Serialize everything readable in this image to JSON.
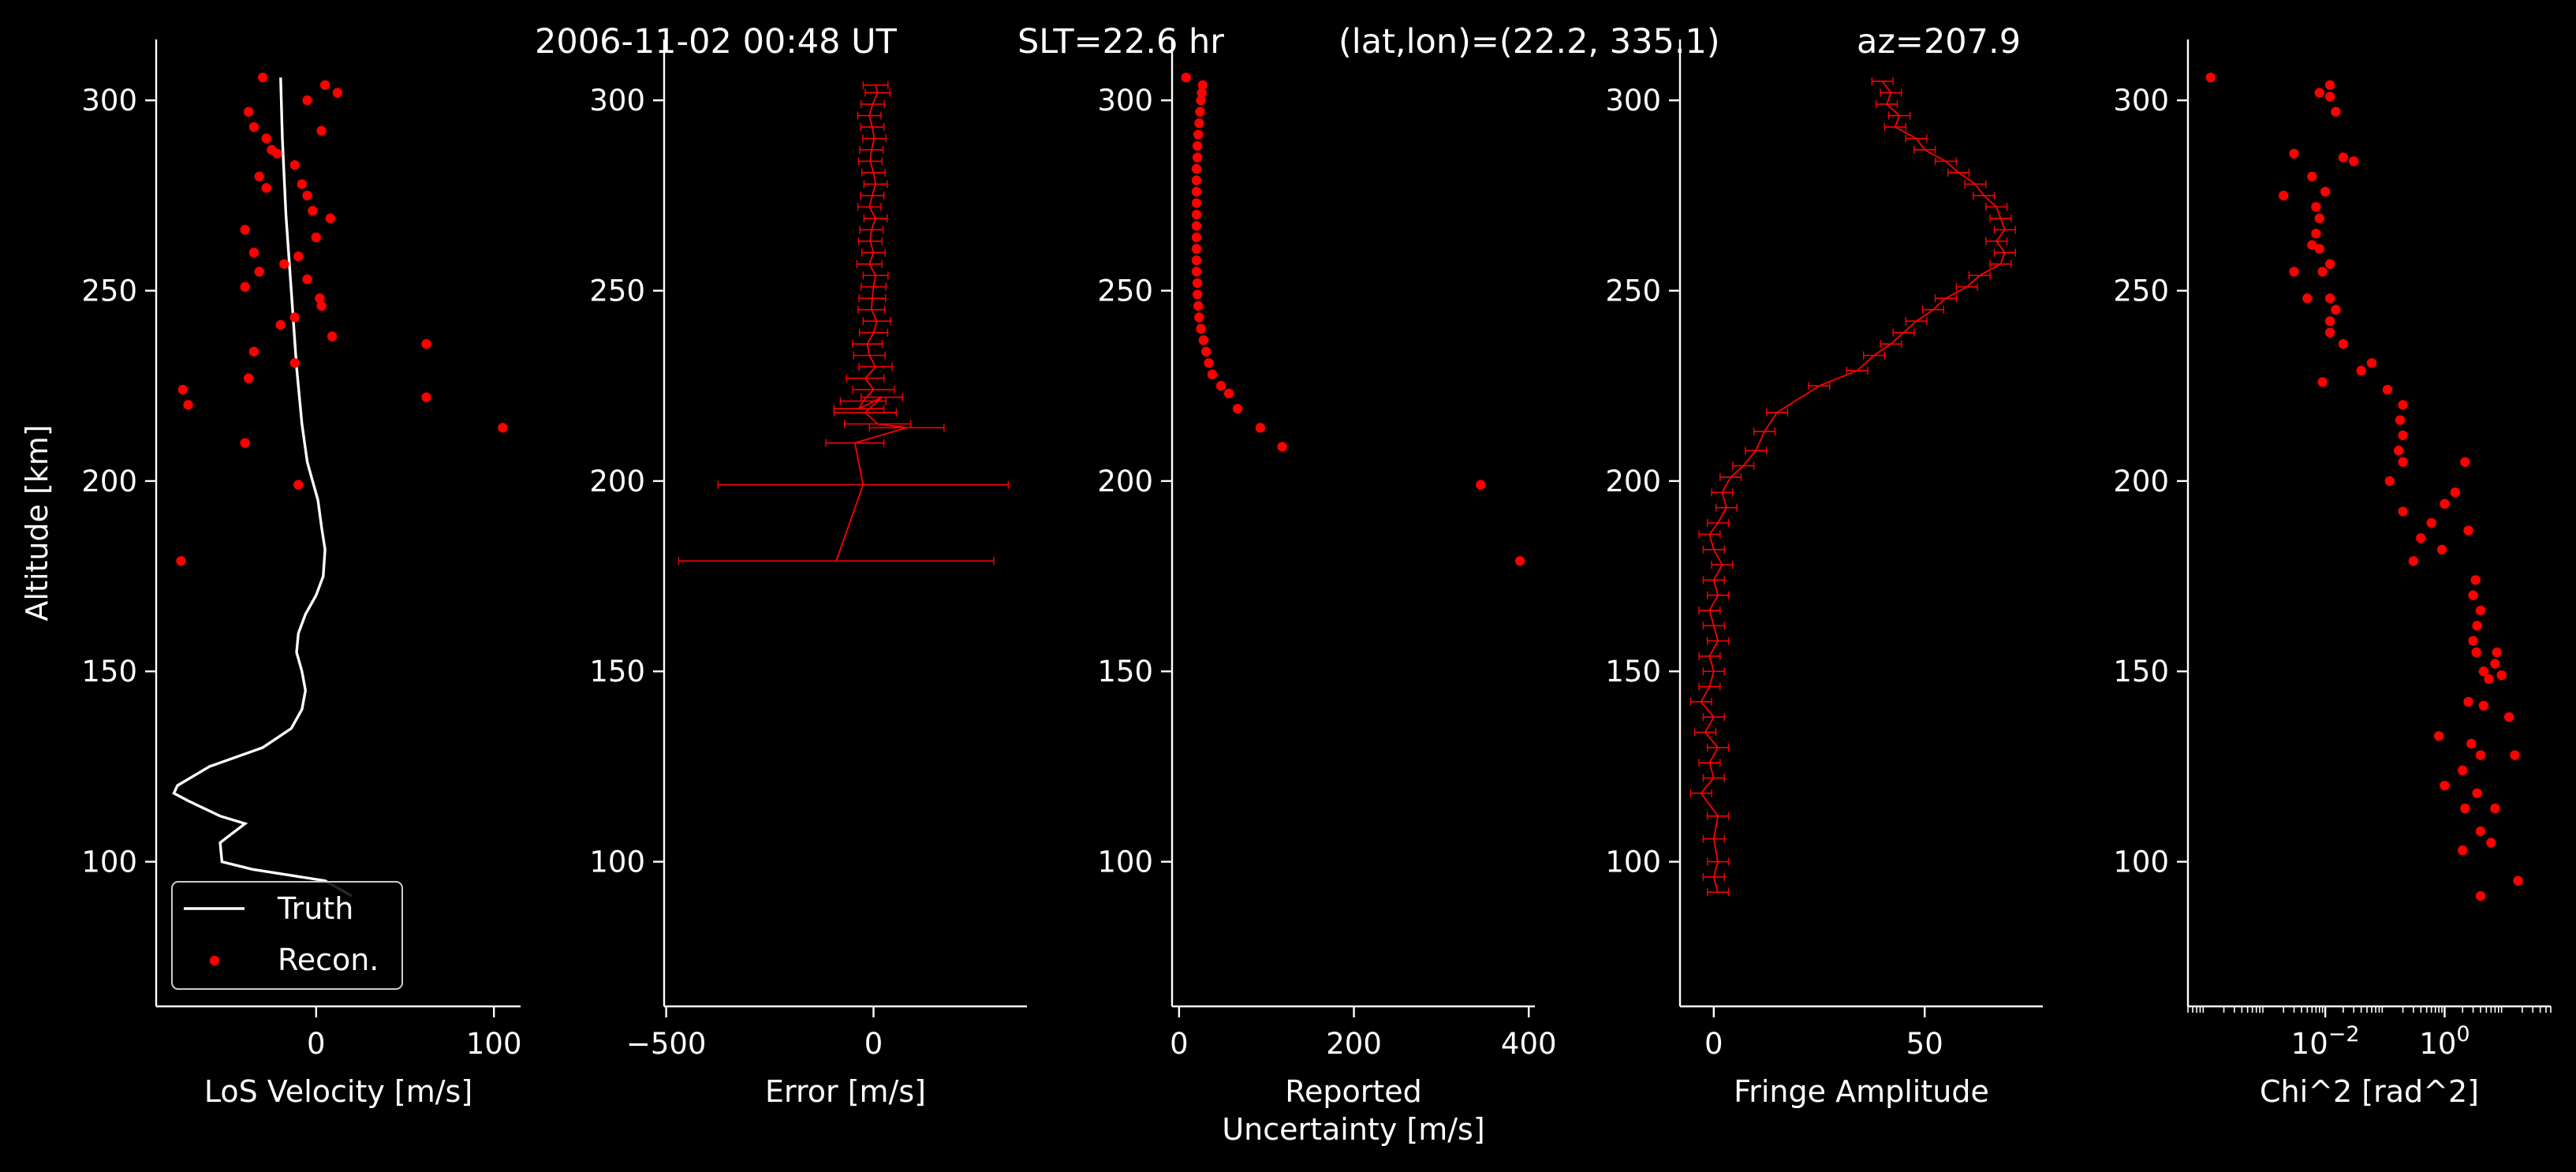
{
  "title_parts": [
    "2006-11-02 00:48 UT",
    "SLT=22.6 hr",
    "(lat,lon)=(22.2, 335.1)",
    "az=207.9"
  ],
  "colors": {
    "background": "#000000",
    "axes": "#ffffff",
    "recon": "#ff0000",
    "truth": "#ffffff"
  },
  "chart_data": [
    {
      "type": "scatter",
      "xlabel": [
        "LoS Velocity [m/s]"
      ],
      "ylabel": "Altitude [km]",
      "xlim": [
        -90,
        115
      ],
      "ylim": [
        62,
        316
      ],
      "xticks": [
        {
          "v": 0,
          "label": "0"
        },
        {
          "v": 100,
          "label": "100"
        }
      ],
      "yticks": [
        {
          "v": 100,
          "label": "100"
        },
        {
          "v": 150,
          "label": "150"
        },
        {
          "v": 200,
          "label": "200"
        },
        {
          "v": 250,
          "label": "250"
        },
        {
          "v": 300,
          "label": "300"
        }
      ],
      "legend": {
        "position": "lower-left",
        "entries": [
          "Truth",
          "Recon."
        ]
      },
      "series": [
        {
          "name": "Truth",
          "kind": "line",
          "x": [
            -20,
            -19,
            -17,
            -14,
            -11,
            -8,
            -5,
            -2,
            1,
            3,
            5,
            4,
            0,
            -6,
            -10,
            -11,
            -8,
            -6,
            -8,
            -14,
            -30,
            -60,
            -78,
            -80,
            -72,
            -54,
            -40,
            -54,
            -53,
            -36,
            5,
            20
          ],
          "y": [
            306,
            290,
            270,
            250,
            230,
            215,
            205,
            200,
            195,
            188,
            182,
            175,
            170,
            165,
            160,
            155,
            150,
            145,
            140,
            135,
            130,
            125,
            120,
            118,
            116,
            112,
            110,
            105,
            100,
            98,
            95,
            91
          ]
        },
        {
          "name": "Recon.",
          "kind": "points",
          "x": [
            -30,
            5,
            12,
            -5,
            -38,
            -35,
            3,
            -28,
            -22,
            -25,
            -12,
            -32,
            -28,
            -8,
            -5,
            -2,
            8,
            -40,
            0,
            -35,
            -10,
            -18,
            -32,
            -5,
            2,
            -40,
            3,
            -12,
            9,
            -35,
            -20,
            -12,
            -38,
            -75,
            -72,
            62,
            62,
            105,
            -40,
            -10,
            -76
          ],
          "y": [
            306,
            304,
            302,
            300,
            297,
            293,
            292,
            290,
            286,
            287,
            283,
            280,
            277,
            278,
            275,
            271,
            269,
            266,
            264,
            260,
            259,
            257,
            255,
            253,
            248,
            251,
            246,
            243,
            238,
            234,
            241,
            231,
            227,
            224,
            220,
            236,
            222,
            214,
            210,
            199,
            179
          ]
        }
      ]
    },
    {
      "type": "scatter",
      "xlabel": [
        "Error [m/s]"
      ],
      "xlim": [
        -505,
        370
      ],
      "ylim": [
        62,
        316
      ],
      "xticks": [
        {
          "v": -500,
          "label": "−500"
        },
        {
          "v": 0,
          "label": "0"
        }
      ],
      "yticks": [
        {
          "v": 100,
          "label": "100"
        },
        {
          "v": 150,
          "label": "150"
        },
        {
          "v": 200,
          "label": "200"
        },
        {
          "v": 250,
          "label": "250"
        },
        {
          "v": 300,
          "label": "300"
        }
      ],
      "series": [
        {
          "name": "",
          "kind": "errorbar",
          "x": [
            5,
            10,
            -2,
            -10,
            -3,
            2,
            -5,
            -8,
            0,
            5,
            -3,
            -10,
            5,
            -5,
            -8,
            0,
            -10,
            5,
            0,
            -3,
            -5,
            8,
            0,
            -15,
            -10,
            5,
            -20,
            0,
            -25,
            -35,
            20,
            -20,
            10,
            80,
            -45,
            -25,
            -90
          ],
          "y": [
            304,
            302,
            299,
            296,
            293,
            290,
            287,
            284,
            281,
            278,
            275,
            272,
            269,
            266,
            263,
            260,
            257,
            254,
            251,
            248,
            245,
            242,
            239,
            236,
            233,
            230,
            227,
            224,
            221,
            219,
            222,
            218,
            215,
            214,
            210,
            199,
            179
          ],
          "err": [
            30,
            30,
            28,
            28,
            28,
            28,
            28,
            28,
            28,
            28,
            28,
            28,
            28,
            28,
            28,
            28,
            30,
            30,
            30,
            32,
            32,
            33,
            34,
            36,
            38,
            40,
            45,
            50,
            55,
            60,
            50,
            75,
            80,
            90,
            70,
            350,
            380
          ]
        }
      ]
    },
    {
      "type": "scatter",
      "xlabel": [
        "Reported",
        "Uncertainty [m/s]"
      ],
      "xlim": [
        -8,
        407
      ],
      "ylim": [
        62,
        316
      ],
      "xticks": [
        {
          "v": 0,
          "label": "0"
        },
        {
          "v": 200,
          "label": "200"
        },
        {
          "v": 400,
          "label": "400"
        }
      ],
      "yticks": [
        {
          "v": 100,
          "label": "100"
        },
        {
          "v": 150,
          "label": "150"
        },
        {
          "v": 200,
          "label": "200"
        },
        {
          "v": 250,
          "label": "250"
        },
        {
          "v": 300,
          "label": "300"
        }
      ],
      "series": [
        {
          "name": "",
          "kind": "points",
          "x": [
            8,
            27,
            26,
            25,
            24,
            23,
            22,
            21,
            21,
            20,
            20,
            20,
            20,
            20,
            20,
            20,
            20,
            20,
            20,
            21,
            21,
            22,
            23,
            25,
            28,
            31,
            34,
            38,
            48,
            57,
            67,
            93,
            118,
            345,
            390
          ],
          "y": [
            306,
            304,
            302,
            300,
            297,
            294,
            291,
            288,
            285,
            282,
            279,
            276,
            273,
            270,
            267,
            264,
            261,
            258,
            255,
            252,
            249,
            246,
            243,
            240,
            237,
            234,
            231,
            228,
            225,
            223,
            219,
            214,
            209,
            199,
            179
          ]
        }
      ]
    },
    {
      "type": "scatter",
      "xlabel": [
        "Fringe Amplitude"
      ],
      "xlim": [
        -8,
        78
      ],
      "ylim": [
        62,
        316
      ],
      "xticks": [
        {
          "v": 0,
          "label": "0"
        },
        {
          "v": 50,
          "label": "50"
        }
      ],
      "yticks": [
        {
          "v": 100,
          "label": "100"
        },
        {
          "v": 150,
          "label": "150"
        },
        {
          "v": 200,
          "label": "200"
        },
        {
          "v": 250,
          "label": "250"
        },
        {
          "v": 300,
          "label": "300"
        }
      ],
      "series": [
        {
          "name": "",
          "kind": "errorbar",
          "x": [
            40,
            42,
            41,
            44,
            43,
            48,
            50,
            55,
            58,
            62,
            64,
            67,
            68,
            69,
            67,
            69,
            68,
            63,
            60,
            55,
            52,
            48,
            45,
            42,
            38,
            34,
            25,
            15,
            12,
            10,
            7,
            4,
            2,
            3,
            1,
            -1,
            0,
            2,
            0,
            1,
            -1,
            0,
            1,
            -1,
            0,
            -1,
            -3,
            0,
            -2,
            1,
            -1,
            0,
            -3,
            1,
            0,
            1,
            0,
            1
          ],
          "y": [
            305,
            302,
            299,
            296,
            293,
            290,
            287,
            284,
            281,
            278,
            275,
            272,
            269,
            266,
            263,
            260,
            257,
            254,
            251,
            248,
            245,
            242,
            239,
            236,
            233,
            229,
            225,
            218,
            213,
            208,
            204,
            201,
            197,
            193,
            189,
            186,
            182,
            178,
            174,
            170,
            166,
            162,
            158,
            154,
            150,
            146,
            142,
            138,
            134,
            130,
            126,
            122,
            118,
            112,
            106,
            100,
            96,
            92
          ],
          "err": [
            2.5,
            2.5,
            2.5,
            2.5,
            2.5,
            2.5,
            2.5,
            2.5,
            2.5,
            2.5,
            2.5,
            2.5,
            2.5,
            2.5,
            2.5,
            2.5,
            2.5,
            2.5,
            2.5,
            2.5,
            2.5,
            2.5,
            2.5,
            2.5,
            2.5,
            2.5,
            2.5,
            2.5,
            2.5,
            2.5,
            2.5,
            2.5,
            2.5,
            2.5,
            2.5,
            2.5,
            2.5,
            2.5,
            2.5,
            2.5,
            2.5,
            2.5,
            2.5,
            2.5,
            2.5,
            2.5,
            2.5,
            2.5,
            2.5,
            2.5,
            2.5,
            2.5,
            2.5,
            2.5,
            2.5,
            2.5,
            2.5,
            2.5
          ]
        }
      ]
    },
    {
      "type": "scatter",
      "xscale": "log",
      "xlabel": [
        "Chi^2 [rad^2]"
      ],
      "xlim": [
        5e-05,
        60
      ],
      "ylim": [
        62,
        316
      ],
      "xticks": [
        {
          "v": 0.01,
          "label": "10",
          "sup": "−2"
        },
        {
          "v": 1,
          "label": "10",
          "sup": "0"
        }
      ],
      "yticks": [
        {
          "v": 100,
          "label": "100"
        },
        {
          "v": 150,
          "label": "150"
        },
        {
          "v": 200,
          "label": "200"
        },
        {
          "v": 250,
          "label": "250"
        },
        {
          "v": 300,
          "label": "300"
        }
      ],
      "series": [
        {
          "name": "",
          "kind": "points",
          "x": [
            0.00012,
            0.012,
            0.008,
            0.015,
            0.012,
            0.02,
            0.003,
            0.03,
            0.006,
            0.01,
            0.007,
            0.008,
            0.002,
            0.007,
            0.006,
            0.008,
            0.012,
            0.009,
            0.003,
            0.012,
            0.005,
            0.015,
            0.012,
            0.012,
            0.02,
            0.06,
            0.04,
            0.009,
            0.11,
            0.2,
            0.18,
            0.2,
            0.17,
            0.2,
            0.12,
            2.2,
            1.5,
            1.0,
            0.2,
            0.6,
            0.4,
            2.5,
            0.9,
            0.3,
            3.3,
            3.0,
            4.0,
            3.5,
            3.0,
            3.4,
            7.5,
            7.0,
            4.5,
            5.5,
            9.0,
            2.5,
            0.8,
            2.8,
            4.5,
            12,
            1.0,
            4.0,
            2.0,
            15,
            3.5,
            7.0,
            2.2,
            4.0,
            6.0,
            2.0,
            17,
            4.0
          ],
          "y": [
            306,
            304,
            302,
            297,
            301,
            285,
            286,
            284,
            280,
            276,
            272,
            269,
            275,
            265,
            262,
            261,
            257,
            255,
            255,
            248,
            248,
            245,
            242,
            239,
            236,
            231,
            229,
            226,
            224,
            220,
            216,
            212,
            208,
            205,
            200,
            205,
            197,
            194,
            192,
            189,
            185,
            187,
            182,
            179,
            174,
            170,
            166,
            162,
            158,
            155,
            155,
            152,
            150,
            148,
            149,
            142,
            133,
            131,
            141,
            138,
            120,
            128,
            124,
            128,
            118,
            114,
            114,
            108,
            105,
            103,
            95,
            91
          ]
        }
      ]
    }
  ]
}
